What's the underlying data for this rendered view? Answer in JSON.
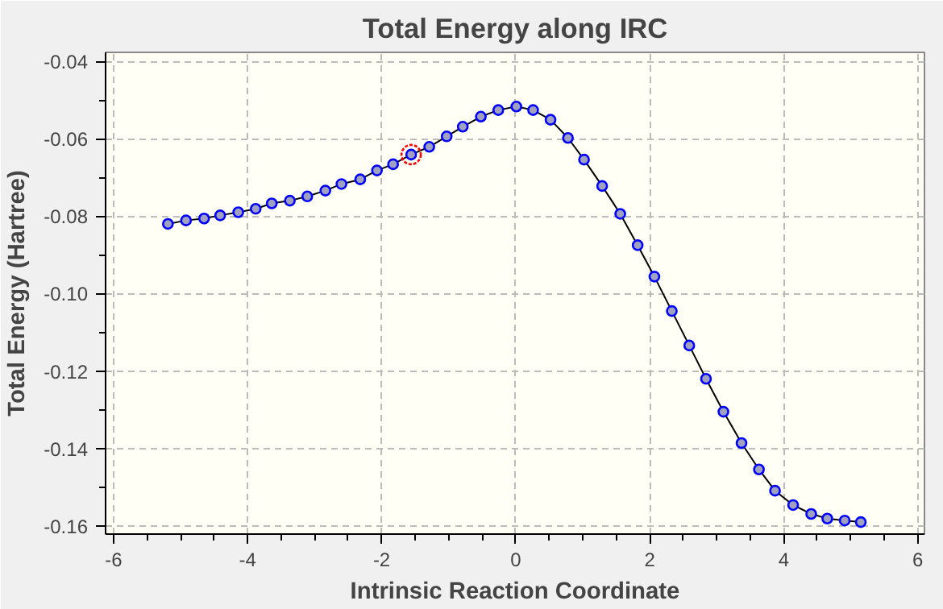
{
  "chart_data": {
    "type": "line",
    "title": "Total Energy along IRC",
    "xlabel": "Intrinsic Reaction Coordinate",
    "ylabel": "Total Energy (Hartree)",
    "xlim": [
      -6.12,
      6.1
    ],
    "ylim": [
      -0.1621,
      -0.0377
    ],
    "xticks": [
      -6,
      -4,
      -2,
      0,
      2,
      4,
      6
    ],
    "yticks": [
      -0.16,
      -0.14,
      -0.12,
      {
        "value": -0.1,
        "label": "-0.10"
      },
      -0.08,
      -0.06,
      -0.04
    ],
    "grid": true,
    "marker": "circle",
    "line_style": "solid",
    "series": [
      {
        "color": "#0000ff",
        "x": [
          -5.19,
          -4.92,
          -4.65,
          -4.41,
          -4.14,
          -3.88,
          -3.64,
          -3.37,
          -3.11,
          -2.84,
          -2.6,
          -2.32,
          -2.07,
          -1.83,
          -1.56,
          -1.29,
          -1.03,
          -0.79,
          -0.52,
          -0.26,
          0.01,
          0.26,
          0.52,
          0.78,
          1.02,
          1.29,
          1.56,
          1.82,
          2.07,
          2.33,
          2.59,
          2.84,
          3.1,
          3.37,
          3.63,
          3.87,
          4.14,
          4.41,
          4.65,
          4.91,
          5.15
        ],
        "values": [
          -0.082,
          -0.0811,
          -0.0806,
          -0.0798,
          -0.079,
          -0.0781,
          -0.0767,
          -0.076,
          -0.0749,
          -0.0734,
          -0.0717,
          -0.0705,
          -0.0682,
          -0.0666,
          -0.0641,
          -0.0621,
          -0.0594,
          -0.0569,
          -0.0543,
          -0.0526,
          -0.0517,
          -0.0526,
          -0.0551,
          -0.0598,
          -0.0654,
          -0.0722,
          -0.0794,
          -0.0875,
          -0.0956,
          -0.1045,
          -0.1134,
          -0.122,
          -0.1305,
          -0.1386,
          -0.1454,
          -0.1509,
          -0.1546,
          -0.1569,
          -0.1581,
          -0.1586,
          -0.159
        ]
      },
      {
        "type": "scatter",
        "color": "#ff0000",
        "x": [
          -1.56
        ],
        "values": [
          -0.0641
        ]
      }
    ]
  }
}
